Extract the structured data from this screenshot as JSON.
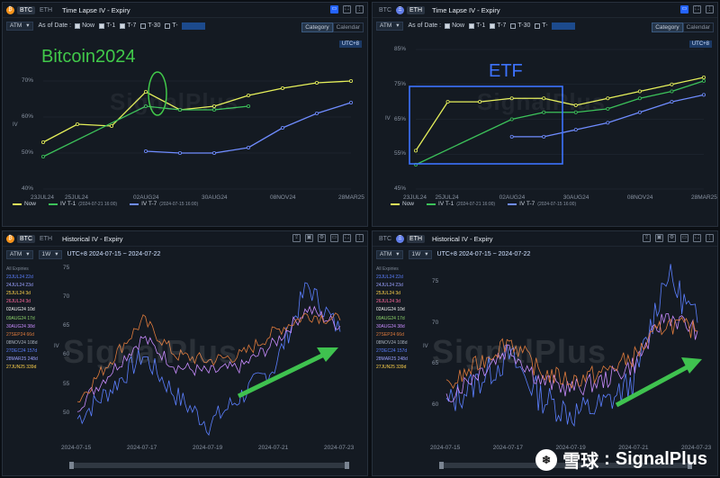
{
  "panels": {
    "tl_btc": {
      "tab_btc": "BTC",
      "tab_eth": "ETH",
      "title": "Time Lapse IV - Expiry",
      "select": "ATM",
      "as_of": "As of Date :",
      "opts": [
        "Now",
        "T-1",
        "T-7",
        "T-30",
        "T-"
      ],
      "view_category": "Category",
      "view_calendar": "Calendar",
      "tz": "UTC+8",
      "y_ticks": [
        "70%",
        "60%",
        "50%",
        "40%"
      ],
      "y_axis": "IV",
      "x_ticks": [
        "23JUL24",
        "25JUL24",
        "02AUG24",
        "30AUG24",
        "08NOV24",
        "28MAR25"
      ],
      "legend": {
        "now": "Now",
        "t1": "IV T-1",
        "t1_ts": "(2024-07-21 16:00)",
        "t7": "IV T-7",
        "t7_ts": "(2024-07-15 16:00)"
      },
      "annotation": "Bitcoin2024"
    },
    "tl_eth": {
      "tab_btc": "BTC",
      "tab_eth": "ETH",
      "title": "Time Lapse IV - Expiry",
      "select": "ATM",
      "as_of": "As of Date :",
      "opts": [
        "Now",
        "T-1",
        "T-7",
        "T-30",
        "T-"
      ],
      "view_category": "Category",
      "view_calendar": "Calendar",
      "tz": "UTC+8",
      "y_ticks": [
        "85%",
        "75%",
        "65%",
        "55%",
        "45%"
      ],
      "y_axis": "IV",
      "x_ticks": [
        "23JUL24",
        "25JUL24",
        "02AUG24",
        "30AUG24",
        "08NOV24",
        "28MAR25"
      ],
      "legend": {
        "now": "Now",
        "t1": "IV T-1",
        "t1_ts": "(2024-07-21 16:00)",
        "t7": "IV T-7",
        "t7_ts": "(2024-07-15 16:00)"
      },
      "annotation": "ETF"
    },
    "hist_btc": {
      "tab_btc": "BTC",
      "tab_eth": "ETH",
      "title": "Historical IV - Expiry",
      "select1": "ATM",
      "select2": "1W",
      "range": "UTC+8 2024-07-15 ~ 2024-07-22",
      "y_ticks": [
        "75",
        "70",
        "65",
        "60",
        "55",
        "50"
      ],
      "y_axis": "IV",
      "x_ticks": [
        "2024-07-15",
        "2024-07-17",
        "2024-07-19",
        "2024-07-21",
        "2024-07-23"
      ],
      "expiries": [
        "All Expiries",
        "23JUL24 22d",
        "24JUL24 23d",
        "25JUL24 3d",
        "26JUL24 3d",
        "02AUG24 10d",
        "09AUG24 17d",
        "30AUG24 38d",
        "27SEP24 66d",
        "08NOV24 108d",
        "27DEC24 157d",
        "28MAR25 248d",
        "27JUN25 339d"
      ]
    },
    "hist_eth": {
      "tab_btc": "BTC",
      "tab_eth": "ETH",
      "title": "Historical IV - Expiry",
      "select1": "ATM",
      "select2": "1W",
      "range": "UTC+8 2024-07-15 ~ 2024-07-22",
      "y_ticks": [
        "75",
        "70",
        "65",
        "60"
      ],
      "y_axis": "IV",
      "x_ticks": [
        "2024-07-15",
        "2024-07-17",
        "2024-07-19",
        "2024-07-21",
        "2024-07-23"
      ],
      "expiries": [
        "All Expiries",
        "23JUL24 22d",
        "24JUL24 23d",
        "25JUL24 3d",
        "26JUL24 3d",
        "02AUG24 10d",
        "09AUG24 17d",
        "30AUG24 38d",
        "27SEP24 66d",
        "08NOV24 108d",
        "27DEC24 157d",
        "28MAR25 248d",
        "27JUN25 339d"
      ]
    }
  },
  "watermark": "SignalPlus",
  "footer": {
    "brand_cn": "雪球",
    "separator": ":",
    "brand": "SignalPlus"
  },
  "colors": {
    "now": "#e6f05a",
    "t1": "#3cc25a",
    "t7": "#6f8cff",
    "annot_green": "#41c94a",
    "annot_blue": "#3d73ff"
  },
  "chart_data": [
    {
      "type": "line",
      "categories": [
        "23JUL24",
        "25JUL24",
        "26JUL24",
        "02AUG24",
        "09AUG24",
        "30AUG24",
        "27SEP24",
        "08NOV24",
        "27DEC24",
        "28MAR25"
      ],
      "series": [
        {
          "name": "Now",
          "values": [
            53,
            58,
            57.5,
            67,
            62,
            63,
            66,
            68,
            69.5,
            70
          ]
        },
        {
          "name": "IV T-1",
          "values": [
            49,
            null,
            null,
            63,
            62,
            62,
            63,
            null,
            null,
            null
          ]
        },
        {
          "name": "IV T-7",
          "values": [
            null,
            null,
            null,
            50.5,
            50,
            50,
            51.5,
            57,
            61,
            64
          ]
        }
      ],
      "ylabel": "IV",
      "ylim": [
        40,
        75
      ]
    },
    {
      "type": "line",
      "categories": [
        "23JUL24",
        "25JUL24",
        "26JUL24",
        "02AUG24",
        "09AUG24",
        "30AUG24",
        "27SEP24",
        "08NOV24",
        "27DEC24",
        "28MAR25"
      ],
      "series": [
        {
          "name": "Now",
          "values": [
            56,
            70,
            70,
            71,
            71,
            69,
            71,
            73,
            75,
            77
          ]
        },
        {
          "name": "IV T-1",
          "values": [
            52,
            null,
            null,
            65,
            67,
            67,
            68,
            71,
            73,
            76
          ]
        },
        {
          "name": "IV T-7",
          "values": [
            null,
            null,
            null,
            60,
            60,
            62,
            64,
            67,
            70,
            72
          ]
        }
      ],
      "ylabel": "IV",
      "ylim": [
        45,
        85
      ]
    },
    {
      "type": "line",
      "x": [
        "2024-07-15",
        "2024-07-16",
        "2024-07-17",
        "2024-07-18",
        "2024-07-19",
        "2024-07-20",
        "2024-07-21",
        "2024-07-22",
        "2024-07-23"
      ],
      "series": [
        {
          "name": "23JUL24",
          "values": [
            49,
            54,
            60,
            53,
            48,
            53,
            58,
            72,
            64
          ]
        },
        {
          "name": "30AUG24",
          "values": [
            51,
            57,
            63,
            58,
            57,
            58,
            62,
            68,
            65
          ]
        },
        {
          "name": "27SEP24",
          "values": [
            52,
            59,
            66,
            60,
            59,
            60,
            64,
            67,
            66
          ]
        }
      ],
      "ylabel": "IV",
      "ylim": [
        47,
        77
      ]
    },
    {
      "type": "line",
      "x": [
        "2024-07-15",
        "2024-07-16",
        "2024-07-17",
        "2024-07-18",
        "2024-07-19",
        "2024-07-20",
        "2024-07-21",
        "2024-07-22",
        "2024-07-23"
      ],
      "series": [
        {
          "name": "23JUL24",
          "values": [
            60,
            63,
            66,
            61,
            59,
            60,
            63,
            76,
            70
          ]
        },
        {
          "name": "30AUG24",
          "values": [
            61,
            64,
            67,
            63,
            62,
            63,
            65,
            71,
            69
          ]
        },
        {
          "name": "27SEP24",
          "values": [
            62,
            65,
            68,
            64,
            63,
            64,
            66,
            70,
            69
          ]
        }
      ],
      "ylabel": "IV",
      "ylim": [
        57,
        78
      ]
    }
  ]
}
